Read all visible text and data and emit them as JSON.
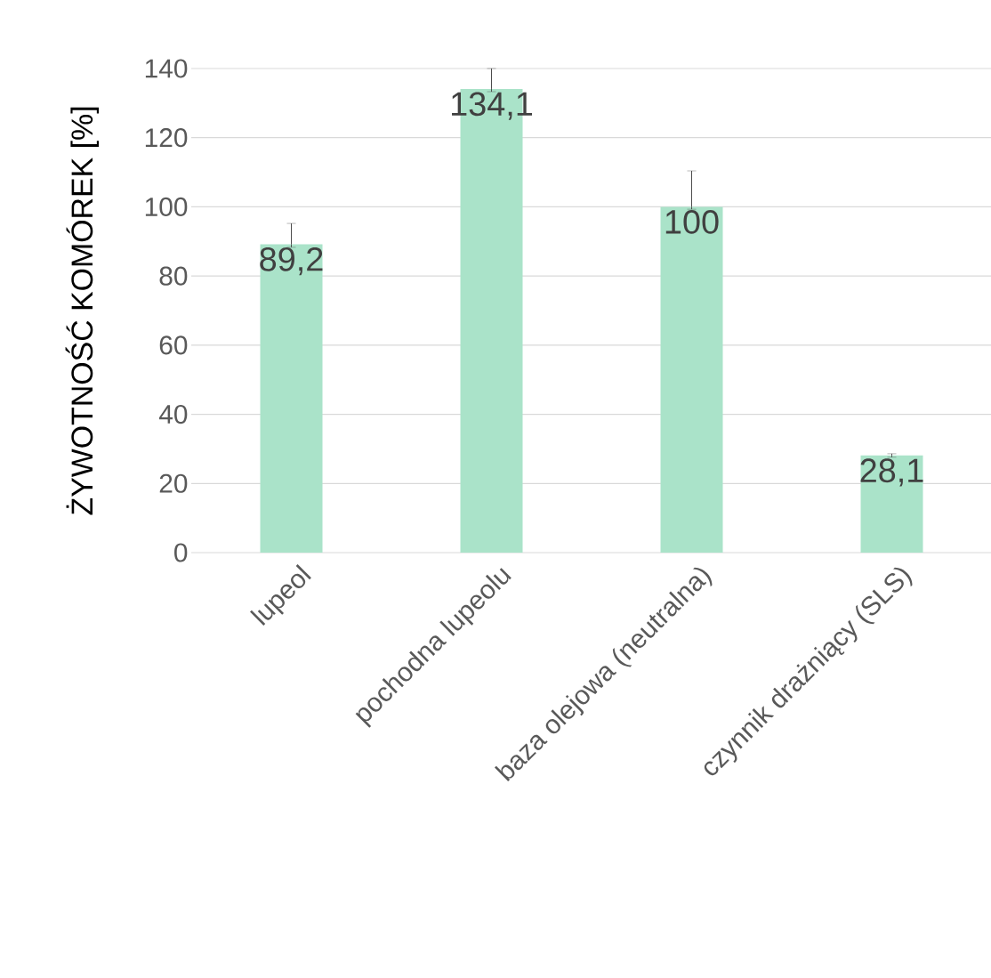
{
  "chart_data": {
    "type": "bar",
    "ylabel": "ŻYWOTNOŚĆ KOMÓREK [%]",
    "categories": [
      "lupeol",
      "pochodna lupeolu",
      "baza olejowa (neutralna)",
      "czynnik drażniący (SLS)"
    ],
    "values": [
      89.2,
      134.1,
      100,
      28.1
    ],
    "value_labels": [
      "89,2",
      "134,1",
      "100",
      "28,1"
    ],
    "errors": [
      [
        88.3,
        95.2
      ],
      [
        133.3,
        140
      ],
      [
        99.3,
        110.4
      ],
      [
        27.6,
        28.6
      ]
    ],
    "color": "#aae3c9",
    "ylim": [
      0,
      140
    ],
    "yticks": [
      0,
      20,
      40,
      60,
      80,
      100,
      120,
      140
    ],
    "grid": "y"
  }
}
